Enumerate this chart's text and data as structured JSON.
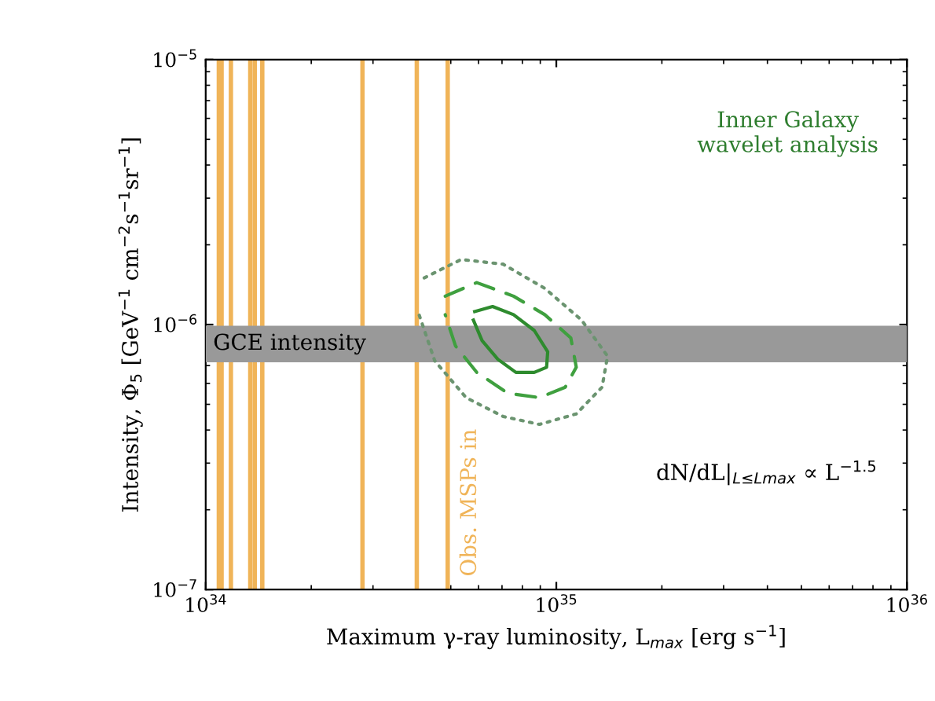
{
  "chart_data": {
    "type": "line",
    "xlabel": "Maximum γ-ray luminosity, L$_{max}$ [erg s$^{−1}$]",
    "ylabel": "Intensity, Φ$_{5}$ [GeV$^{−1}$ cm$^{−2}$s$^{−1}$sr$^{−1}$]",
    "log": "xy",
    "xlim": [
      1e+34,
      1e+36
    ],
    "ylim": [
      1e-07,
      1e-05
    ],
    "xticks": [
      {
        "value": 1e+34,
        "label": "10$^{34}$"
      },
      {
        "value": 1e+35,
        "label": "10$^{35}$"
      },
      {
        "value": 1e+36,
        "label": "10$^{36}$"
      }
    ],
    "yticks": [
      {
        "value": 1e-07,
        "label": "10$^{−7}$"
      },
      {
        "value": 1e-06,
        "label": "10$^{−6}$"
      },
      {
        "value": 1e-05,
        "label": "10$^{−5}$"
      }
    ],
    "series": [
      {
        "color": "#2e8b2e",
        "line_style": "solid",
        "x": [
          5.85e+34,
          6.58e+34,
          7.55e+34,
          8.65e+34,
          9.45e+34,
          9.38e+34,
          8.65e+34,
          7.67e+34,
          6.81e+34,
          6.14e+34,
          5.8e+34
        ],
        "values": [
          1.12e-06,
          1.17e-06,
          1.09e-06,
          9.5e-07,
          7.9e-07,
          6.9e-07,
          6.6e-07,
          6.6e-07,
          7.4e-07,
          8.7e-07,
          1.04e-06
        ]
      },
      {
        "color": "#3fa03f",
        "line_style": "dashed",
        "x": [
          4.82e+34,
          5.93e+34,
          7.55e+34,
          9.27e+34,
          1.1e+35,
          1.14e+35,
          1.06e+35,
          8.95e+34,
          7.28e+34,
          5.93e+34,
          5.16e+34,
          4.82e+34
        ],
        "values": [
          1.28e-06,
          1.44e-06,
          1.28e-06,
          1.09e-06,
          8.9e-07,
          6.9e-07,
          5.8e-07,
          5.3e-07,
          5.5e-07,
          6.6e-07,
          8.3e-07,
          1.09e-06
        ]
      },
      {
        "color": "#6b9470",
        "line_style": "dotted",
        "x": [
          4.2e+34,
          5.35e+34,
          7.05e+34,
          9.27e+34,
          1.18e+35,
          1.4e+35,
          1.35e+35,
          1.14e+35,
          8.95e+34,
          7.05e+34,
          5.53e+34,
          4.5e+34,
          4.06e+34
        ],
        "values": [
          1.5e-06,
          1.76e-06,
          1.69e-06,
          1.37e-06,
          1.04e-06,
          7.6e-07,
          5.8e-07,
          4.6e-07,
          4.2e-07,
          4.5e-07,
          5.3e-07,
          7.3e-07,
          1.09e-06
        ]
      }
    ],
    "ref_lines": [
      {
        "axis": "x",
        "value": 1.09e+34,
        "color": "#f0b458"
      },
      {
        "axis": "x",
        "value": 1.11e+34,
        "color": "#f0b458"
      },
      {
        "axis": "x",
        "value": 1.18e+34,
        "color": "#f0b458"
      },
      {
        "axis": "x",
        "value": 1.34e+34,
        "color": "#f0b458"
      },
      {
        "axis": "x",
        "value": 1.38e+34,
        "color": "#f0b458"
      },
      {
        "axis": "x",
        "value": 1.45e+34,
        "color": "#f0b458"
      },
      {
        "axis": "x",
        "value": 2.8e+34,
        "color": "#f0b458"
      },
      {
        "axis": "x",
        "value": 4e+34,
        "color": "#f0b458"
      },
      {
        "axis": "x",
        "value": 4.9e+34,
        "color": "#f0b458",
        "label": "Obs. MSPs in"
      }
    ],
    "bands": [
      {
        "axis": "y",
        "from": 7.2e-07,
        "to": 9.9e-07,
        "color": "#999999",
        "label": "GCE intensity"
      }
    ],
    "annotations": [
      "Inner Galaxy\nwavelet analysis",
      "dN/dL|$_{L≤Lmax}$ ∝ L$^{−1.5}$"
    ]
  }
}
